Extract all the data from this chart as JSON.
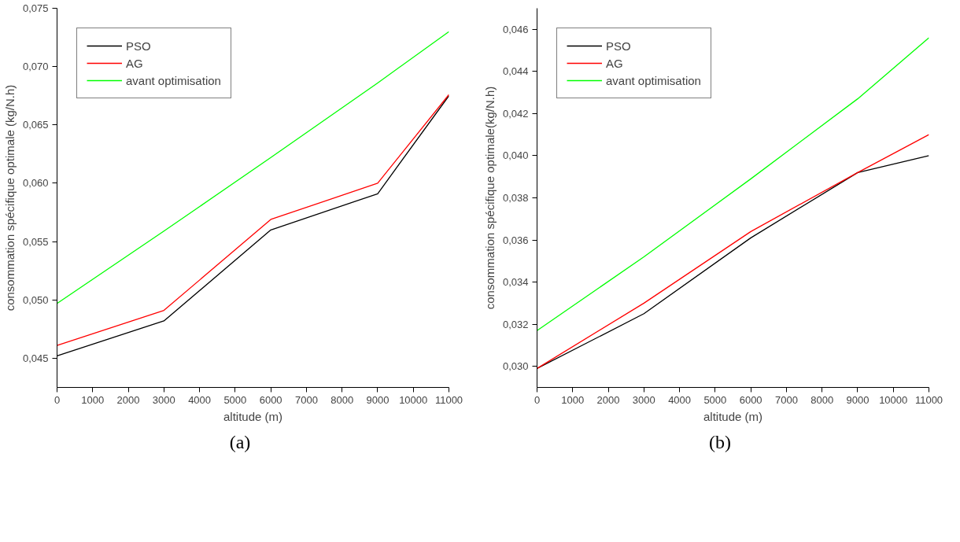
{
  "chart_data": [
    {
      "type": "line",
      "xlabel": "altitude (m)",
      "ylabel": "consommation spécifique optimale (kg/N.h)",
      "x": [
        0,
        3000,
        6000,
        9000,
        11000
      ],
      "series": [
        {
          "name": "PSO",
          "color": "#000000",
          "values": [
            0.0452,
            0.0482,
            0.056,
            0.0591,
            0.0675
          ]
        },
        {
          "name": "AG",
          "color": "#ff0000",
          "values": [
            0.0461,
            0.0491,
            0.0569,
            0.06,
            0.0676
          ]
        },
        {
          "name": "avant optimisation",
          "color": "#00ff00",
          "values": [
            0.0497,
            0.0559,
            0.0622,
            0.0686,
            0.073
          ]
        }
      ],
      "xlim": [
        0,
        11000
      ],
      "xticks": [
        0,
        1000,
        2000,
        3000,
        4000,
        5000,
        6000,
        7000,
        8000,
        9000,
        10000,
        11000
      ],
      "ylim": [
        0.0425,
        0.075
      ],
      "yticks": [
        {
          "value": 0.045,
          "label": "0,045"
        },
        {
          "value": 0.05,
          "label": "0,050"
        },
        {
          "value": 0.055,
          "label": "0,055"
        },
        {
          "value": 0.06,
          "label": "0,060"
        },
        {
          "value": 0.065,
          "label": "0,065"
        },
        {
          "value": 0.07,
          "label": "0,070"
        },
        {
          "value": 0.075,
          "label": "0,075"
        }
      ],
      "legend": "top left",
      "grid": false,
      "annotations": [
        "(a)"
      ]
    },
    {
      "type": "line",
      "xlabel": "altitude (m)",
      "ylabel": "consommation spécifique optimale(kg/N.h)",
      "x": [
        0,
        3000,
        6000,
        9000,
        11000
      ],
      "series": [
        {
          "name": "PSO",
          "color": "#000000",
          "values": [
            0.0299,
            0.0325,
            0.0361,
            0.0392,
            0.04
          ]
        },
        {
          "name": "AG",
          "color": "#ff0000",
          "values": [
            0.0299,
            0.033,
            0.0364,
            0.0392,
            0.041
          ]
        },
        {
          "name": "avant optimisation",
          "color": "#00ff00",
          "values": [
            0.0317,
            0.0352,
            0.0389,
            0.0427,
            0.0456
          ]
        }
      ],
      "xlim": [
        0,
        11000
      ],
      "xticks": [
        0,
        1000,
        2000,
        3000,
        4000,
        5000,
        6000,
        7000,
        8000,
        9000,
        10000,
        11000
      ],
      "ylim": [
        0.029,
        0.047
      ],
      "yticks": [
        {
          "value": 0.03,
          "label": "0,030"
        },
        {
          "value": 0.032,
          "label": "0,032"
        },
        {
          "value": 0.034,
          "label": "0,034"
        },
        {
          "value": 0.036,
          "label": "0,036"
        },
        {
          "value": 0.038,
          "label": "0,038"
        },
        {
          "value": 0.04,
          "label": "0,040"
        },
        {
          "value": 0.042,
          "label": "0,042"
        },
        {
          "value": 0.044,
          "label": "0,044"
        },
        {
          "value": 0.046,
          "label": "0,046"
        }
      ],
      "legend": "top left",
      "grid": false,
      "annotations": [
        "(b)"
      ]
    }
  ]
}
